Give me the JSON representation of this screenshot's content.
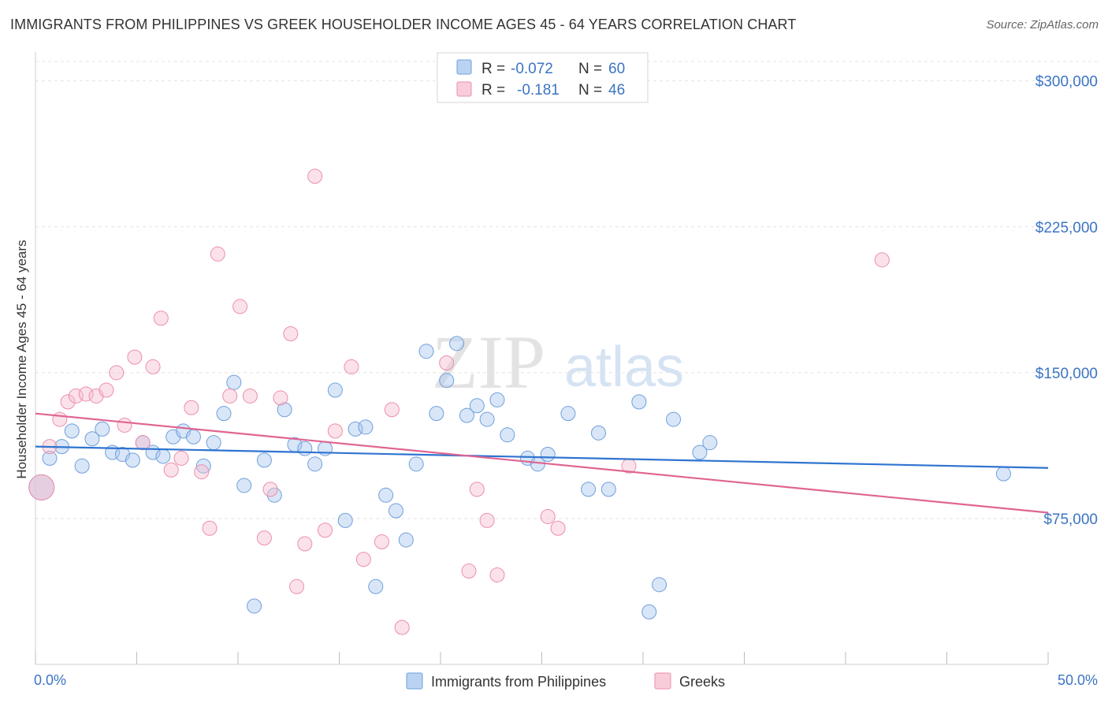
{
  "title": "IMMIGRANTS FROM PHILIPPINES VS GREEK HOUSEHOLDER INCOME AGES 45 - 64 YEARS CORRELATION CHART",
  "source": "Source: ZipAtlas.com",
  "watermark": {
    "part1": "ZIP",
    "part2": "atlas"
  },
  "chart_data": {
    "type": "scatter",
    "ylabel": "Householder Income Ages 45 - 64 years",
    "xlim": [
      0,
      50
    ],
    "ylim": [
      0,
      310000
    ],
    "x_tick_labels": [
      "0.0%",
      "50.0%"
    ],
    "y_ticks": [
      {
        "value": 75000,
        "label": "$75,000"
      },
      {
        "value": 150000,
        "label": "$150,000"
      },
      {
        "value": 225000,
        "label": "$225,000"
      },
      {
        "value": 300000,
        "label": "$300,000"
      }
    ],
    "grid": true,
    "legend_position": "bottom",
    "stats_box_position": "top-center",
    "series": [
      {
        "name": "Immigrants from Philippines",
        "color": "#a9c8f0",
        "stroke": "#6f9fdc",
        "line_color": "#2f74d0",
        "R": "-0.072",
        "N": "60",
        "trend": [
          [
            0,
            112000
          ],
          [
            50,
            101000
          ]
        ],
        "points": [
          [
            0.3,
            91000
          ],
          [
            0.7,
            106000
          ],
          [
            1.3,
            112000
          ],
          [
            1.8,
            120000
          ],
          [
            2.3,
            102000
          ],
          [
            2.8,
            116000
          ],
          [
            3.3,
            121000
          ],
          [
            3.8,
            109000
          ],
          [
            4.3,
            108000
          ],
          [
            4.8,
            105000
          ],
          [
            5.3,
            114000
          ],
          [
            5.8,
            109000
          ],
          [
            6.3,
            107000
          ],
          [
            6.8,
            117000
          ],
          [
            7.3,
            120000
          ],
          [
            7.8,
            117000
          ],
          [
            8.3,
            102000
          ],
          [
            8.8,
            114000
          ],
          [
            9.3,
            129000
          ],
          [
            9.8,
            145000
          ],
          [
            10.3,
            92000
          ],
          [
            10.8,
            30000
          ],
          [
            11.3,
            105000
          ],
          [
            11.8,
            87000
          ],
          [
            12.3,
            131000
          ],
          [
            12.8,
            113000
          ],
          [
            13.3,
            111000
          ],
          [
            13.8,
            103000
          ],
          [
            14.3,
            111000
          ],
          [
            14.8,
            141000
          ],
          [
            15.3,
            74000
          ],
          [
            15.8,
            121000
          ],
          [
            16.3,
            122000
          ],
          [
            16.8,
            40000
          ],
          [
            17.3,
            87000
          ],
          [
            17.8,
            79000
          ],
          [
            18.3,
            64000
          ],
          [
            18.8,
            103000
          ],
          [
            19.3,
            161000
          ],
          [
            19.8,
            129000
          ],
          [
            20.3,
            146000
          ],
          [
            20.8,
            165000
          ],
          [
            21.3,
            128000
          ],
          [
            21.8,
            133000
          ],
          [
            22.3,
            126000
          ],
          [
            22.8,
            136000
          ],
          [
            23.3,
            118000
          ],
          [
            24.3,
            106000
          ],
          [
            24.8,
            103000
          ],
          [
            25.3,
            108000
          ],
          [
            26.3,
            129000
          ],
          [
            27.3,
            90000
          ],
          [
            27.8,
            119000
          ],
          [
            28.3,
            90000
          ],
          [
            29.8,
            135000
          ],
          [
            30.3,
            27000
          ],
          [
            30.8,
            41000
          ],
          [
            31.5,
            126000
          ],
          [
            32.8,
            109000
          ],
          [
            33.3,
            114000
          ],
          [
            47.8,
            98000
          ]
        ]
      },
      {
        "name": "Greeks",
        "color": "#f7bfd0",
        "stroke": "#ec8eaa",
        "line_color": "#e06592",
        "R": "-0.181",
        "N": "46",
        "trend": [
          [
            0,
            129000
          ],
          [
            50,
            78000
          ]
        ],
        "points": [
          [
            0.3,
            91000
          ],
          [
            0.7,
            112000
          ],
          [
            1.2,
            126000
          ],
          [
            1.6,
            135000
          ],
          [
            2.0,
            138000
          ],
          [
            2.5,
            139000
          ],
          [
            3.0,
            138000
          ],
          [
            3.5,
            141000
          ],
          [
            4.0,
            150000
          ],
          [
            4.4,
            123000
          ],
          [
            4.9,
            158000
          ],
          [
            5.3,
            114000
          ],
          [
            5.8,
            153000
          ],
          [
            6.2,
            178000
          ],
          [
            6.7,
            100000
          ],
          [
            7.2,
            106000
          ],
          [
            7.7,
            132000
          ],
          [
            8.2,
            99000
          ],
          [
            8.6,
            70000
          ],
          [
            9.0,
            211000
          ],
          [
            9.6,
            138000
          ],
          [
            10.1,
            184000
          ],
          [
            10.6,
            138000
          ],
          [
            11.3,
            65000
          ],
          [
            11.6,
            90000
          ],
          [
            12.1,
            137000
          ],
          [
            12.6,
            170000
          ],
          [
            12.9,
            40000
          ],
          [
            13.3,
            62000
          ],
          [
            13.8,
            251000
          ],
          [
            14.3,
            69000
          ],
          [
            14.8,
            120000
          ],
          [
            15.6,
            153000
          ],
          [
            16.2,
            54000
          ],
          [
            17.1,
            63000
          ],
          [
            17.6,
            131000
          ],
          [
            18.1,
            19000
          ],
          [
            20.3,
            155000
          ],
          [
            21.4,
            48000
          ],
          [
            21.8,
            90000
          ],
          [
            22.3,
            74000
          ],
          [
            22.8,
            46000
          ],
          [
            25.3,
            76000
          ],
          [
            25.8,
            70000
          ],
          [
            29.3,
            102000
          ],
          [
            41.8,
            208000
          ]
        ]
      }
    ]
  }
}
